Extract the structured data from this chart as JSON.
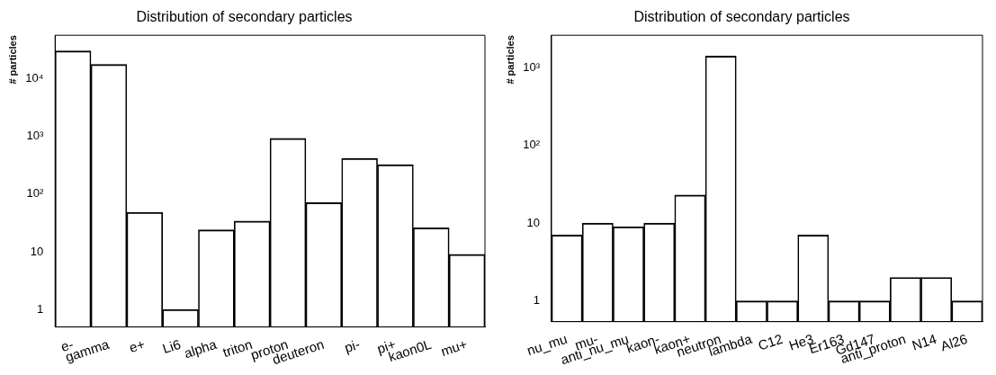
{
  "chart_data": [
    {
      "type": "bar",
      "title": "Distribution of secondary particles",
      "ylabel": "# particles",
      "categories": [
        "e-",
        "gamma",
        "e+",
        "Li6",
        "alpha",
        "triton",
        "proton",
        "deuteron",
        "pi-",
        "pi+",
        "kaon0L",
        "mu+"
      ],
      "values": [
        30000,
        17500,
        48,
        1,
        24,
        34,
        920,
        71,
        414,
        322,
        26,
        9
      ],
      "color": "#000000",
      "log": "y",
      "ylim": [
        0.5,
        56000
      ],
      "yticks": [
        {
          "value": 1,
          "label": "1"
        },
        {
          "value": 10,
          "label": "10"
        },
        {
          "value": 100,
          "label": "10²"
        },
        {
          "value": 1000,
          "label": "10³"
        },
        {
          "value": 10000,
          "label": "10⁴"
        }
      ],
      "grid": false
    },
    {
      "type": "bar",
      "title": "Distribution of secondary particles",
      "ylabel": "# particles",
      "categories": [
        "nu_mu",
        "mu-",
        "anti_nu_mu",
        "kaon-",
        "kaon+",
        "neutron",
        "lambda",
        "C12",
        "He3",
        "Er163",
        "Gd147",
        "anti_proton",
        "N14",
        "Al26"
      ],
      "values": [
        7,
        10,
        9,
        10,
        23,
        1400,
        1,
        1,
        7,
        1,
        1,
        2,
        2,
        1
      ],
      "color": "#000000",
      "log": "y",
      "ylim": [
        0.54,
        2600
      ],
      "yticks": [
        {
          "value": 1,
          "label": "1"
        },
        {
          "value": 10,
          "label": "10"
        },
        {
          "value": 100,
          "label": "10²"
        },
        {
          "value": 1000,
          "label": "10³"
        }
      ],
      "grid": false
    }
  ]
}
